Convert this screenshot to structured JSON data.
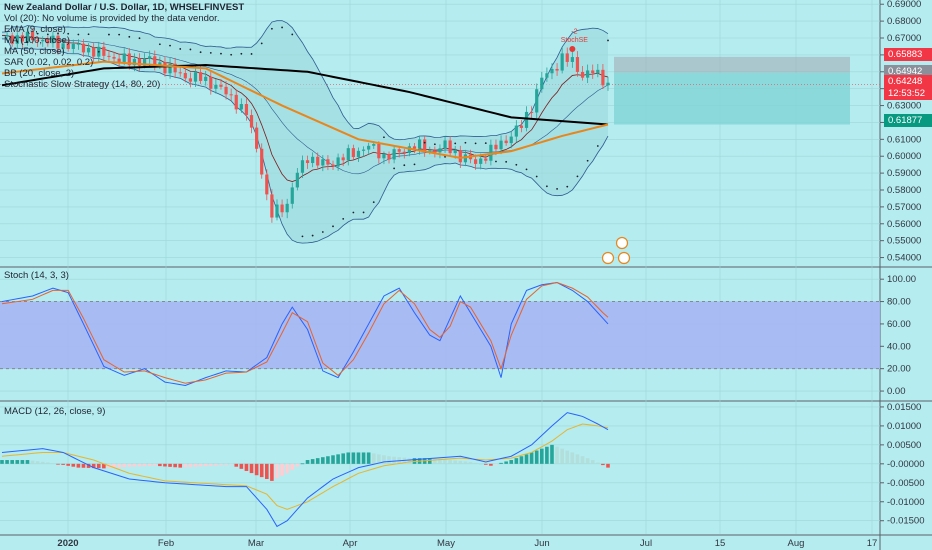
{
  "legend": {
    "title": "New Zealand Dollar / U.S. Dollar, 1D, WHSELFINVEST",
    "lines": [
      "Vol (20): No volume is provided by the data vendor.",
      "EMA (9, close)",
      "MA (100, close)",
      "MA (50, close)",
      "SAR (0.02, 0.02, 0.2)",
      "BB (20, close, 2)",
      "Stochastic Slow Strategy (14, 80, 20)"
    ]
  },
  "pane_labels": {
    "stoch": "Stoch (14, 3, 3)",
    "macd": "MACD (12, 26, close, 9)"
  },
  "signal_label": "StochSE",
  "signal_value": "-2",
  "price_tags": [
    {
      "label": "0.65883",
      "color": "#f23645"
    },
    {
      "label": "0.64942",
      "color": "#8a8f99"
    },
    {
      "label": "0.64248",
      "color": "#f23645"
    },
    {
      "label": "12:53:52",
      "color": "#f23645"
    },
    {
      "label": "0.61877",
      "color": "#089981"
    }
  ],
  "colors": {
    "background": "#b4ecef",
    "up": "#26a69a",
    "down": "#ef5350",
    "ma100": "#000000",
    "ma50": "#e8861c",
    "ema9": "#7b1e1e",
    "bb": "#2f5b8f",
    "stoch_k": "#2962ff",
    "stoch_d": "#e8622c",
    "macd": "#2962ff",
    "signal": "#e8b52c",
    "stoch_band": "#a7b6f3"
  },
  "chart_data": [
    {
      "type": "candlestick",
      "title": "New Zealand Dollar / U.S. Dollar, 1D, WHSELFINVEST",
      "y_ticks": [
        "0.69000",
        "0.68000",
        "0.67000",
        "0.66000",
        "0.65000",
        "0.64000",
        "0.63000",
        "0.62000",
        "0.61000",
        "0.60000",
        "0.59000",
        "0.58000",
        "0.57000",
        "0.56000",
        "0.55000",
        "0.54000"
      ],
      "ylim": [
        0.535,
        0.6925
      ],
      "x_ticks": [
        "2020",
        "Feb",
        "Mar",
        "Apr",
        "May",
        "Jun",
        "Jul",
        "15",
        "Aug",
        "17"
      ],
      "close_path": [
        [
          0,
          0.67
        ],
        [
          6,
          0.67
        ],
        [
          12,
          0.666
        ],
        [
          16,
          0.664
        ],
        [
          20,
          0.66
        ],
        [
          25,
          0.656
        ],
        [
          29,
          0.657
        ],
        [
          32,
          0.653
        ],
        [
          36,
          0.647
        ],
        [
          39,
          0.646
        ],
        [
          42,
          0.642
        ],
        [
          44,
          0.637
        ],
        [
          46,
          0.632
        ],
        [
          48,
          0.625
        ],
        [
          50,
          0.605
        ],
        [
          51,
          0.592
        ],
        [
          52,
          0.575
        ],
        [
          53,
          0.565
        ],
        [
          54,
          0.568
        ],
        [
          56,
          0.572
        ],
        [
          58,
          0.59
        ],
        [
          60,
          0.6
        ],
        [
          62,
          0.596
        ],
        [
          64,
          0.595
        ],
        [
          66,
          0.598
        ],
        [
          69,
          0.602
        ],
        [
          72,
          0.606
        ],
        [
          75,
          0.6
        ],
        [
          78,
          0.602
        ],
        [
          81,
          0.607
        ],
        [
          84,
          0.603
        ],
        [
          87,
          0.606
        ],
        [
          90,
          0.6
        ],
        [
          93,
          0.596
        ],
        [
          96,
          0.603
        ],
        [
          99,
          0.61
        ],
        [
          102,
          0.618
        ],
        [
          104,
          0.63
        ],
        [
          106,
          0.646
        ],
        [
          108,
          0.651
        ],
        [
          110,
          0.658
        ],
        [
          112,
          0.656
        ],
        [
          114,
          0.648
        ],
        [
          116,
          0.65
        ],
        [
          118,
          0.646
        ],
        [
          119,
          0.6425
        ]
      ],
      "lines": {
        "ma100": [
          [
            0,
            0.642
          ],
          [
            20,
            0.652
          ],
          [
            40,
            0.654
          ],
          [
            60,
            0.65
          ],
          [
            80,
            0.638
          ],
          [
            100,
            0.623
          ],
          [
            119,
            0.6188
          ]
        ],
        "ma50": [
          [
            0,
            0.649
          ],
          [
            20,
            0.656
          ],
          [
            40,
            0.652
          ],
          [
            55,
            0.63
          ],
          [
            70,
            0.61
          ],
          [
            90,
            0.599
          ],
          [
            100,
            0.603
          ],
          [
            110,
            0.612
          ],
          [
            119,
            0.6188
          ]
        ]
      },
      "annotations": [
        "StochSE",
        "-2"
      ]
    },
    {
      "type": "line",
      "title": "Stoch (14, 3, 3)",
      "y_ticks": [
        "100.00",
        "80.00",
        "60.00",
        "40.00",
        "20.00",
        "0.00"
      ],
      "ylim": [
        -8,
        110
      ],
      "band": [
        20,
        80
      ],
      "series": [
        {
          "name": "%K",
          "values": [
            [
              0,
              80
            ],
            [
              6,
              85
            ],
            [
              10,
              92
            ],
            [
              13,
              88
            ],
            [
              16,
              60
            ],
            [
              20,
              22
            ],
            [
              24,
              14
            ],
            [
              28,
              20
            ],
            [
              32,
              8
            ],
            [
              36,
              5
            ],
            [
              40,
              12
            ],
            [
              44,
              18
            ],
            [
              48,
              17
            ],
            [
              52,
              30
            ],
            [
              55,
              60
            ],
            [
              57,
              75
            ],
            [
              60,
              55
            ],
            [
              63,
              18
            ],
            [
              66,
              12
            ],
            [
              69,
              35
            ],
            [
              72,
              60
            ],
            [
              75,
              85
            ],
            [
              78,
              92
            ],
            [
              81,
              70
            ],
            [
              84,
              50
            ],
            [
              86,
              45
            ],
            [
              88,
              65
            ],
            [
              90,
              85
            ],
            [
              92,
              70
            ],
            [
              94,
              55
            ],
            [
              96,
              40
            ],
            [
              98,
              12
            ],
            [
              100,
              60
            ],
            [
              103,
              90
            ],
            [
              106,
              95
            ],
            [
              109,
              97
            ],
            [
              112,
              90
            ],
            [
              115,
              80
            ],
            [
              118,
              65
            ],
            [
              119,
              60
            ]
          ]
        },
        {
          "name": "%D",
          "values": [
            [
              0,
              78
            ],
            [
              6,
              82
            ],
            [
              10,
              90
            ],
            [
              13,
              90
            ],
            [
              16,
              65
            ],
            [
              20,
              28
            ],
            [
              24,
              17
            ],
            [
              28,
              18
            ],
            [
              32,
              12
            ],
            [
              36,
              7
            ],
            [
              40,
              10
            ],
            [
              44,
              16
            ],
            [
              48,
              17
            ],
            [
              52,
              26
            ],
            [
              55,
              52
            ],
            [
              57,
              70
            ],
            [
              60,
              62
            ],
            [
              63,
              25
            ],
            [
              66,
              14
            ],
            [
              69,
              28
            ],
            [
              72,
              52
            ],
            [
              75,
              78
            ],
            [
              78,
              90
            ],
            [
              81,
              78
            ],
            [
              84,
              55
            ],
            [
              86,
              48
            ],
            [
              88,
              58
            ],
            [
              90,
              80
            ],
            [
              92,
              75
            ],
            [
              94,
              60
            ],
            [
              96,
              45
            ],
            [
              98,
              20
            ],
            [
              100,
              50
            ],
            [
              103,
              82
            ],
            [
              106,
              94
            ],
            [
              109,
              97
            ],
            [
              112,
              92
            ],
            [
              115,
              84
            ],
            [
              118,
              70
            ],
            [
              119,
              66
            ]
          ]
        }
      ]
    },
    {
      "type": "bar",
      "title": "MACD (12, 26, close, 9)",
      "y_ticks": [
        "0.01500",
        "0.01000",
        "0.00500",
        "-0.00000",
        "-0.00500",
        "-0.01000",
        "-0.01500"
      ],
      "ylim": [
        -0.0185,
        0.0163
      ],
      "histogram": [
        [
          0,
          0.001
        ],
        [
          5,
          0.001
        ],
        [
          10,
          0.0002
        ],
        [
          15,
          -0.001
        ],
        [
          20,
          -0.0012
        ],
        [
          25,
          -0.0008
        ],
        [
          30,
          -0.0005
        ],
        [
          35,
          -0.001
        ],
        [
          40,
          -0.0006
        ],
        [
          45,
          -0.0002
        ],
        [
          50,
          -0.003
        ],
        [
          53,
          -0.0045
        ],
        [
          56,
          -0.0025
        ],
        [
          60,
          0.001
        ],
        [
          64,
          0.002
        ],
        [
          68,
          0.003
        ],
        [
          72,
          0.003
        ],
        [
          76,
          0.002
        ],
        [
          80,
          0.0015
        ],
        [
          84,
          0.0015
        ],
        [
          88,
          0.001
        ],
        [
          92,
          0.0005
        ],
        [
          96,
          -0.0005
        ],
        [
          100,
          0.001
        ],
        [
          104,
          0.003
        ],
        [
          108,
          0.005
        ],
        [
          112,
          0.003
        ],
        [
          116,
          0.001
        ],
        [
          119,
          -0.001
        ]
      ],
      "series": [
        {
          "name": "MACD",
          "values": [
            [
              0,
              0.003
            ],
            [
              8,
              0.004
            ],
            [
              12,
              0.003
            ],
            [
              18,
              -0.001
            ],
            [
              25,
              -0.004
            ],
            [
              32,
              -0.005
            ],
            [
              38,
              -0.0055
            ],
            [
              44,
              -0.006
            ],
            [
              48,
              -0.006
            ],
            [
              52,
              -0.012
            ],
            [
              54,
              -0.0165
            ],
            [
              56,
              -0.015
            ],
            [
              60,
              -0.009
            ],
            [
              65,
              -0.004
            ],
            [
              70,
              -0.001
            ],
            [
              75,
              0.0005
            ],
            [
              80,
              0.001
            ],
            [
              85,
              0.0015
            ],
            [
              90,
              0.002
            ],
            [
              95,
              0.0005
            ],
            [
              100,
              0.002
            ],
            [
              104,
              0.005
            ],
            [
              108,
              0.01
            ],
            [
              111,
              0.0135
            ],
            [
              114,
              0.0125
            ],
            [
              117,
              0.0105
            ],
            [
              119,
              0.009
            ]
          ]
        },
        {
          "name": "Signal",
          "values": [
            [
              0,
              0.002
            ],
            [
              8,
              0.003
            ],
            [
              12,
              0.003
            ],
            [
              18,
              0.001
            ],
            [
              25,
              -0.0025
            ],
            [
              32,
              -0.0045
            ],
            [
              38,
              -0.005
            ],
            [
              44,
              -0.0055
            ],
            [
              48,
              -0.0058
            ],
            [
              52,
              -0.008
            ],
            [
              54,
              -0.011
            ],
            [
              56,
              -0.012
            ],
            [
              60,
              -0.01
            ],
            [
              65,
              -0.006
            ],
            [
              70,
              -0.0025
            ],
            [
              75,
              -0.0005
            ],
            [
              80,
              0.0005
            ],
            [
              85,
              0.001
            ],
            [
              90,
              0.0015
            ],
            [
              95,
              0.001
            ],
            [
              100,
              0.0015
            ],
            [
              104,
              0.003
            ],
            [
              108,
              0.006
            ],
            [
              111,
              0.009
            ],
            [
              114,
              0.0105
            ],
            [
              117,
              0.01
            ],
            [
              119,
              0.0095
            ]
          ]
        }
      ]
    }
  ]
}
